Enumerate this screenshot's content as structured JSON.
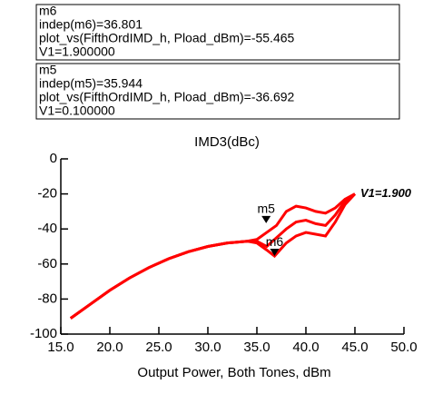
{
  "chart_data": {
    "type": "line",
    "title": "IMD3(dBc)",
    "x_label": "Output Power, Both Tones, dBm",
    "xlim": [
      15,
      50
    ],
    "ylim": [
      -100,
      0
    ],
    "xticks": [
      {
        "value": 15,
        "label": "15.0"
      },
      {
        "value": 20,
        "label": "20.0"
      },
      {
        "value": 25,
        "label": "25.0"
      },
      {
        "value": 30,
        "label": "30.0"
      },
      {
        "value": 35,
        "label": "35.0"
      },
      {
        "value": 40,
        "label": "40.0"
      },
      {
        "value": 45,
        "label": "45.0"
      },
      {
        "value": 50,
        "label": "50.0"
      }
    ],
    "yticks": [
      0,
      -20,
      -40,
      -60,
      -80,
      -100
    ],
    "series": [
      {
        "color": "#ff0000",
        "x": [
          16,
          18,
          20,
          22,
          24,
          26,
          28,
          30,
          32,
          34,
          35,
          36,
          37,
          38,
          39,
          40,
          41,
          42,
          43,
          44,
          45
        ],
        "values": [
          -91,
          -83,
          -75,
          -68,
          -62,
          -57,
          -53,
          -50,
          -48,
          -47,
          -46,
          -42,
          -38,
          -30,
          -27,
          -28,
          -30,
          -31,
          -28,
          -23,
          -20
        ]
      },
      {
        "color": "#ff0000",
        "x": [
          16,
          18,
          20,
          22,
          24,
          26,
          28,
          30,
          32,
          34,
          35,
          36,
          37,
          38,
          39,
          40,
          41,
          42,
          43,
          44,
          45
        ],
        "values": [
          -91,
          -83,
          -75,
          -68,
          -62,
          -57,
          -53,
          -50,
          -48,
          -47,
          -47,
          -50,
          -45,
          -40,
          -36,
          -35,
          -37,
          -38,
          -32,
          -24,
          -20
        ]
      },
      {
        "color": "#ff0000",
        "x": [
          16,
          18,
          20,
          22,
          24,
          26,
          28,
          30,
          32,
          34,
          35,
          36,
          36.801,
          38,
          39,
          40,
          41,
          42,
          43,
          44,
          45
        ],
        "values": [
          -91,
          -83,
          -75,
          -68,
          -62,
          -57,
          -53,
          -50,
          -48,
          -47,
          -48,
          -52,
          -55.465,
          -48,
          -44,
          -42,
          -43,
          -44,
          -36,
          -26,
          -20
        ]
      }
    ],
    "annotation": "V1=1.900",
    "markers": [
      {
        "name": "m6",
        "x": 36.801,
        "y": -55.465,
        "box": [
          "m6",
          "indep(m6)=36.801",
          "plot_vs(FifthOrdIMD_h, Pload_dBm)=-55.465",
          "V1=1.900000"
        ]
      },
      {
        "name": "m5",
        "x": 35.944,
        "y": -36.692,
        "box": [
          "m5",
          "indep(m5)=35.944",
          "plot_vs(FifthOrdIMD_h, Pload_dBm)=-36.692",
          "V1=0.100000"
        ]
      }
    ]
  }
}
